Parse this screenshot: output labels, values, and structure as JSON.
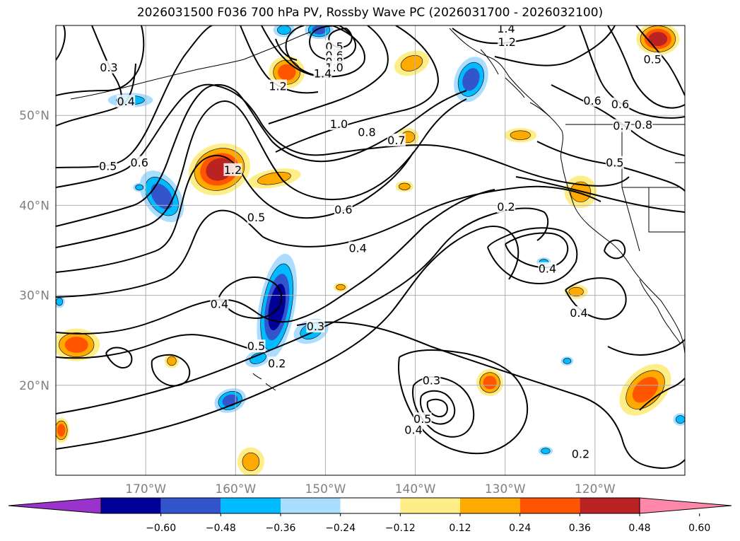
{
  "title": "2026031500 F036 700 hPa PV, Rossby Wave PC (2026031700 - 2026032100)",
  "map": {
    "lon_range": [
      -180,
      -110
    ],
    "lat_range": [
      10,
      60
    ],
    "lon_ticks": [
      {
        "lon": -170,
        "label": "170°W"
      },
      {
        "lon": -160,
        "label": "160°W"
      },
      {
        "lon": -150,
        "label": "150°W"
      },
      {
        "lon": -140,
        "label": "140°W"
      },
      {
        "lon": -130,
        "label": "130°W"
      },
      {
        "lon": -120,
        "label": "120°W"
      }
    ],
    "lat_ticks": [
      {
        "lat": 20,
        "label": "20°N"
      },
      {
        "lat": 30,
        "label": "30°N"
      },
      {
        "lat": 40,
        "label": "40°N"
      },
      {
        "lat": 50,
        "label": "50°N"
      }
    ],
    "grid": true
  },
  "colorbar": {
    "colors": [
      "#9933cc",
      "#000099",
      "#3355cc",
      "#00bbff",
      "#aaddff",
      "#ffffff",
      "#ffee88",
      "#ffaa00",
      "#ff5500",
      "#bb2222",
      "#ff88aa"
    ],
    "ticks": [
      "−0.60",
      "−0.48",
      "−0.36",
      "−0.24",
      "−0.12",
      "0.12",
      "0.24",
      "0.36",
      "0.48",
      "0.60"
    ]
  },
  "contour_labels": [
    {
      "text": "0.3",
      "lon": -174.1,
      "lat": 55.3
    },
    {
      "text": "0.4",
      "lon": -172.2,
      "lat": 51.5
    },
    {
      "text": "0.5",
      "lon": -174.2,
      "lat": 44.3
    },
    {
      "text": "0.6",
      "lon": -170.7,
      "lat": 44.7
    },
    {
      "text": "0.5",
      "lon": -149.0,
      "lat": 57.6
    },
    {
      "text": "0.6",
      "lon": -149.0,
      "lat": 56.6
    },
    {
      "text": "0.8",
      "lon": -149.0,
      "lat": 55.9
    },
    {
      "text": "1.0",
      "lon": -149.0,
      "lat": 55.3
    },
    {
      "text": "1.4",
      "lon": -150.3,
      "lat": 54.6
    },
    {
      "text": "1.2",
      "lon": -155.3,
      "lat": 53.2
    },
    {
      "text": "1.4",
      "lon": -129.9,
      "lat": 59.6
    },
    {
      "text": "1.2",
      "lon": -129.8,
      "lat": 58.1
    },
    {
      "text": "1.0",
      "lon": -148.5,
      "lat": 49.0
    },
    {
      "text": "0.8",
      "lon": -145.4,
      "lat": 48.1
    },
    {
      "text": "0.7",
      "lon": -142.1,
      "lat": 47.2
    },
    {
      "text": "1.2",
      "lon": -160.3,
      "lat": 43.9
    },
    {
      "text": "0.5",
      "lon": -157.7,
      "lat": 38.6
    },
    {
      "text": "0.6",
      "lon": -148.0,
      "lat": 39.5
    },
    {
      "text": "0.2",
      "lon": -129.9,
      "lat": 39.8
    },
    {
      "text": "0.4",
      "lon": -146.4,
      "lat": 35.2
    },
    {
      "text": "0.4",
      "lon": -161.8,
      "lat": 29.0
    },
    {
      "text": "0.3",
      "lon": -151.1,
      "lat": 26.5
    },
    {
      "text": "0.5",
      "lon": -157.7,
      "lat": 24.3
    },
    {
      "text": "0.2",
      "lon": -155.4,
      "lat": 22.4
    },
    {
      "text": "0.3",
      "lon": -138.2,
      "lat": 20.5
    },
    {
      "text": "0.5",
      "lon": -139.2,
      "lat": 16.2
    },
    {
      "text": "0.4",
      "lon": -140.2,
      "lat": 15.0
    },
    {
      "text": "0.4",
      "lon": -125.3,
      "lat": 32.9
    },
    {
      "text": "0.4",
      "lon": -121.8,
      "lat": 28.0
    },
    {
      "text": "0.2",
      "lon": -121.6,
      "lat": 12.3
    },
    {
      "text": "0.5",
      "lon": -113.6,
      "lat": 56.2
    },
    {
      "text": "0.6",
      "lon": -120.3,
      "lat": 51.6
    },
    {
      "text": "0.6",
      "lon": -117.2,
      "lat": 51.2
    },
    {
      "text": "0.8",
      "lon": -114.6,
      "lat": 48.9
    },
    {
      "text": "0.7",
      "lon": -117.0,
      "lat": 48.8
    },
    {
      "text": "0.5",
      "lon": -117.8,
      "lat": 44.7
    }
  ],
  "anomalies": [
    {
      "lon": -161.8,
      "lat": 44.0,
      "rx": 3.5,
      "ry": 2.8,
      "rot": -20,
      "levels": [
        "#ffee88",
        "#ffaa00",
        "#ff5500",
        "#bb2222"
      ]
    },
    {
      "lon": -155.7,
      "lat": 43.0,
      "rx": 3.0,
      "ry": 1.0,
      "rot": -10,
      "levels": [
        "#ffee88",
        "#ffaa00"
      ]
    },
    {
      "lon": -168.2,
      "lat": 41.0,
      "rx": 2.0,
      "ry": 3.2,
      "rot": -35,
      "levels": [
        "#aaddff",
        "#00bbff",
        "#3355cc"
      ]
    },
    {
      "lon": -155.4,
      "lat": 28.7,
      "rx": 2.0,
      "ry": 6.0,
      "rot": 10,
      "levels": [
        "#aaddff",
        "#00bbff",
        "#3355cc",
        "#000099"
      ]
    },
    {
      "lon": -151.6,
      "lat": 26.0,
      "rx": 2.0,
      "ry": 1.3,
      "rot": -20,
      "levels": [
        "#aaddff",
        "#00bbff"
      ]
    },
    {
      "lon": -157.5,
      "lat": 23.0,
      "rx": 1.5,
      "ry": 0.9,
      "rot": -20,
      "levels": [
        "#aaddff",
        "#00bbff"
      ]
    },
    {
      "lon": -160.6,
      "lat": 18.3,
      "rx": 1.8,
      "ry": 1.3,
      "rot": -20,
      "levels": [
        "#aaddff",
        "#00bbff",
        "#3355cc"
      ]
    },
    {
      "lon": -154.3,
      "lat": 54.8,
      "rx": 2.0,
      "ry": 1.8,
      "rot": 0,
      "levels": [
        "#ffee88",
        "#ffaa00",
        "#ff5500"
      ]
    },
    {
      "lon": -140.4,
      "lat": 55.8,
      "rx": 2.0,
      "ry": 1.3,
      "rot": -20,
      "levels": [
        "#ffee88",
        "#ffaa00"
      ]
    },
    {
      "lon": -133.8,
      "lat": 54.0,
      "rx": 1.8,
      "ry": 2.6,
      "rot": 20,
      "levels": [
        "#aaddff",
        "#00bbff",
        "#3355cc"
      ]
    },
    {
      "lon": -150.7,
      "lat": 59.5,
      "rx": 1.6,
      "ry": 1.0,
      "rot": 0,
      "levels": [
        "#aaddff",
        "#00bbff",
        "#3355cc"
      ]
    },
    {
      "lon": -154.6,
      "lat": 59.5,
      "rx": 1.2,
      "ry": 0.8,
      "rot": 0,
      "levels": [
        "#aaddff",
        "#00bbff"
      ]
    },
    {
      "lon": -113.0,
      "lat": 58.5,
      "rx": 2.4,
      "ry": 1.8,
      "rot": 0,
      "levels": [
        "#ffee88",
        "#ffaa00",
        "#ff5500",
        "#bb2222"
      ]
    },
    {
      "lon": -121.6,
      "lat": 41.5,
      "rx": 1.8,
      "ry": 1.8,
      "rot": 0,
      "levels": [
        "#ffee88",
        "#ffaa00"
      ]
    },
    {
      "lon": -140.8,
      "lat": 47.6,
      "rx": 1.2,
      "ry": 1.0,
      "rot": 0,
      "levels": [
        "#ffee88",
        "#ffaa00"
      ]
    },
    {
      "lon": -128.3,
      "lat": 47.8,
      "rx": 1.8,
      "ry": 0.8,
      "rot": 0,
      "levels": [
        "#ffee88",
        "#ffaa00"
      ]
    },
    {
      "lon": -114.4,
      "lat": 19.5,
      "rx": 2.2,
      "ry": 3.4,
      "rot": 45,
      "levels": [
        "#ffee88",
        "#ffaa00",
        "#ff5500"
      ]
    },
    {
      "lon": -177.7,
      "lat": 24.5,
      "rx": 2.6,
      "ry": 1.8,
      "rot": 0,
      "levels": [
        "#ffee88",
        "#ffaa00",
        "#ff5500"
      ]
    },
    {
      "lon": -131.7,
      "lat": 20.3,
      "rx": 1.5,
      "ry": 1.5,
      "rot": 0,
      "levels": [
        "#ffee88",
        "#ffaa00",
        "#ff5500"
      ]
    },
    {
      "lon": -158.3,
      "lat": 11.5,
      "rx": 1.5,
      "ry": 1.6,
      "rot": 0,
      "levels": [
        "#ffee88",
        "#ffaa00"
      ]
    },
    {
      "lon": -122.1,
      "lat": 30.4,
      "rx": 1.3,
      "ry": 0.8,
      "rot": 0,
      "levels": [
        "#ffee88",
        "#ffaa00"
      ]
    },
    {
      "lon": -179.4,
      "lat": 15.0,
      "rx": 0.9,
      "ry": 1.4,
      "rot": 0,
      "levels": [
        "#ffee88",
        "#ffaa00",
        "#ff5500"
      ]
    },
    {
      "lon": -167.1,
      "lat": 22.7,
      "rx": 0.8,
      "ry": 0.8,
      "rot": 0,
      "levels": [
        "#ffee88",
        "#ffaa00"
      ]
    },
    {
      "lon": -171.7,
      "lat": 51.7,
      "rx": 2.5,
      "ry": 0.8,
      "rot": 0,
      "levels": [
        "#aaddff",
        "#00bbff"
      ]
    },
    {
      "lon": -141.2,
      "lat": 42.1,
      "rx": 1.0,
      "ry": 0.6,
      "rot": 0,
      "levels": [
        "#ffee88",
        "#ffaa00"
      ]
    },
    {
      "lon": -148.3,
      "lat": 30.9,
      "rx": 0.8,
      "ry": 0.5,
      "rot": 0,
      "levels": [
        "#ffee88",
        "#ffaa00"
      ]
    },
    {
      "lon": -125.5,
      "lat": 12.7,
      "rx": 0.8,
      "ry": 0.5,
      "rot": 0,
      "levels": [
        "#aaddff",
        "#00bbff"
      ]
    },
    {
      "lon": -110.5,
      "lat": 16.2,
      "rx": 0.8,
      "ry": 0.7,
      "rot": 0,
      "levels": [
        "#aaddff",
        "#00bbff"
      ]
    },
    {
      "lon": -179.6,
      "lat": 29.3,
      "rx": 0.6,
      "ry": 0.7,
      "rot": 0,
      "levels": [
        "#aaddff",
        "#00bbff"
      ]
    },
    {
      "lon": -170.7,
      "lat": 42.0,
      "rx": 0.7,
      "ry": 0.5,
      "rot": 0,
      "levels": [
        "#aaddff",
        "#00bbff"
      ]
    },
    {
      "lon": -123.1,
      "lat": 22.7,
      "rx": 0.7,
      "ry": 0.5,
      "rot": 0,
      "levels": [
        "#aaddff",
        "#00bbff"
      ]
    },
    {
      "lon": -125.7,
      "lat": 33.7,
      "rx": 0.8,
      "ry": 0.5,
      "rot": 0,
      "levels": [
        "#aaddff",
        "#00bbff"
      ]
    }
  ]
}
